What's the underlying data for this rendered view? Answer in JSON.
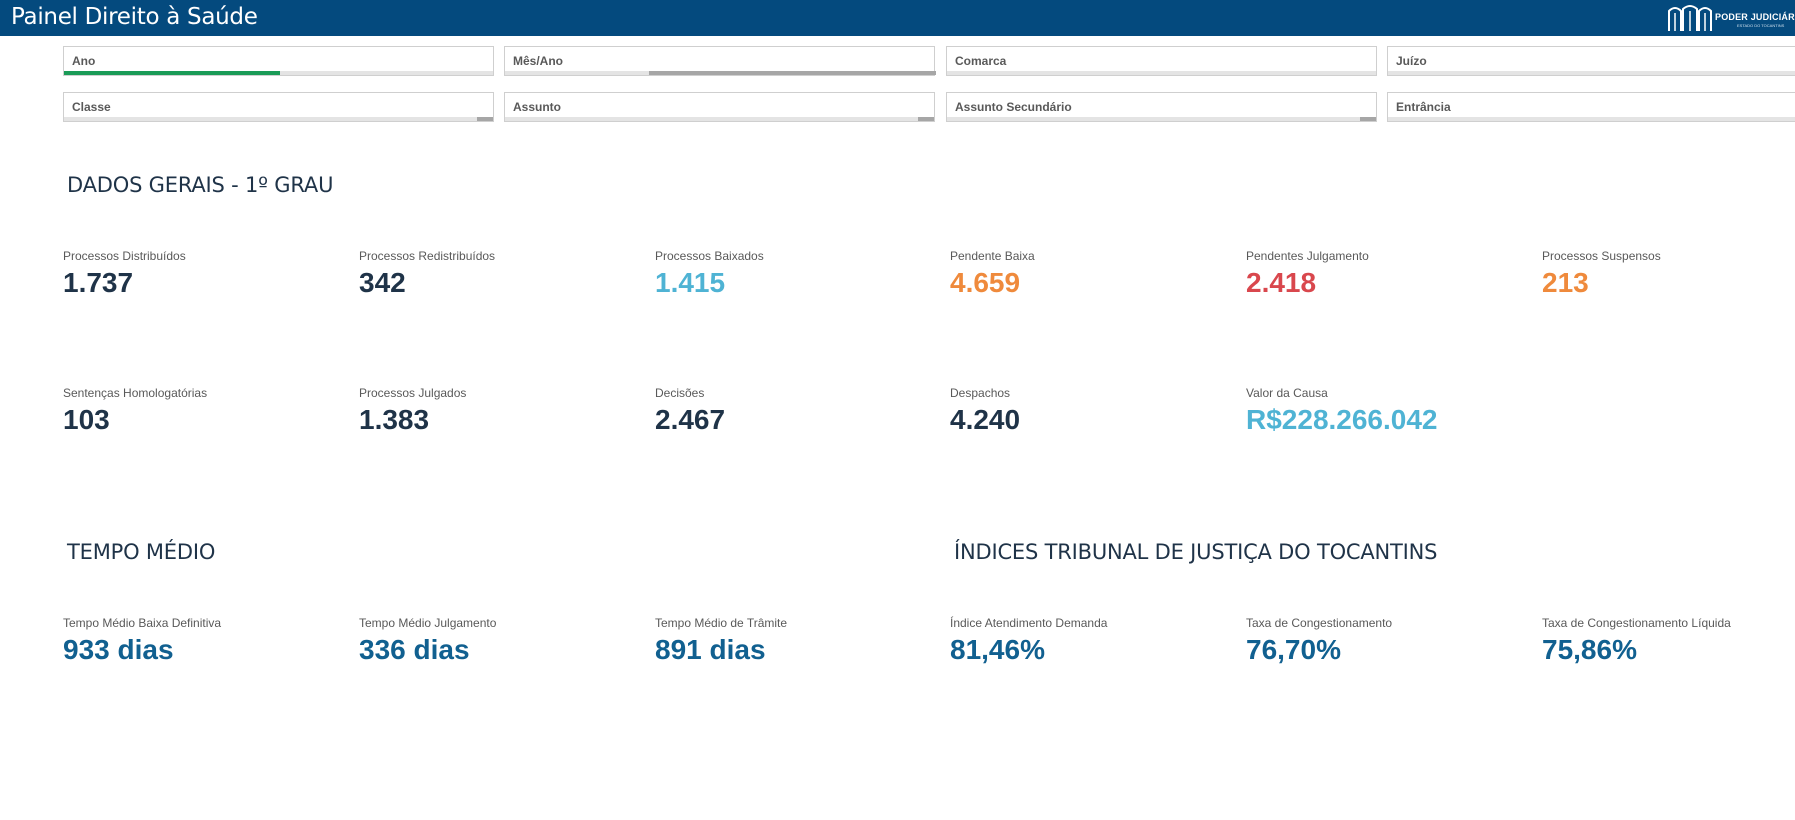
{
  "header": {
    "title": "Painel Direito à Saúde",
    "logo_text": "PODER JUDICIÁRIO",
    "logo_subtext": "ESTADO DO TOCANTINS"
  },
  "colors": {
    "header_bg": "#044a7e",
    "dark": "#1f3348",
    "light_blue": "#4fb3d4",
    "orange": "#ef8a3c",
    "red": "#d9474d",
    "mid_blue": "#116090",
    "slider_green": "#1a9b57",
    "slider_grey": "#a6a6a6"
  },
  "filters": [
    {
      "label": "Ano",
      "selection": "partial-green"
    },
    {
      "label": "Mês/Ano",
      "selection": "partial-grey"
    },
    {
      "label": "Comarca",
      "selection": "none"
    },
    {
      "label": "Juízo",
      "selection": "none"
    },
    {
      "label": "Classe",
      "selection": "scroll"
    },
    {
      "label": "Assunto",
      "selection": "scroll"
    },
    {
      "label": "Assunto Secundário",
      "selection": "scroll"
    },
    {
      "label": "Entrância",
      "selection": "none"
    }
  ],
  "general": {
    "title": "DADOS GERAIS - 1º GRAU",
    "row1": [
      {
        "label": "Processos Distribuídos",
        "value": "1.737",
        "tone": "dark"
      },
      {
        "label": "Processos Redistribuídos",
        "value": "342",
        "tone": "dark"
      },
      {
        "label": "Processos Baixados",
        "value": "1.415",
        "tone": "light_blue"
      },
      {
        "label": "Pendente Baixa",
        "value": "4.659",
        "tone": "orange"
      },
      {
        "label": "Pendentes Julgamento",
        "value": "2.418",
        "tone": "red"
      },
      {
        "label": "Processos Suspensos",
        "value": "213",
        "tone": "orange"
      }
    ],
    "row2": [
      {
        "label": "Sentenças Homologatórias",
        "value": "103",
        "tone": "dark"
      },
      {
        "label": "Processos Julgados",
        "value": "1.383",
        "tone": "dark"
      },
      {
        "label": "Decisões",
        "value": "2.467",
        "tone": "dark"
      },
      {
        "label": "Despachos",
        "value": "4.240",
        "tone": "dark"
      },
      {
        "label": "Valor da Causa",
        "value": "R$228.266.042",
        "tone": "light_blue"
      }
    ]
  },
  "time": {
    "title": "TEMPO MÉDIO",
    "items": [
      {
        "label": "Tempo Médio Baixa Definitiva",
        "value": "933 dias"
      },
      {
        "label": "Tempo Médio Julgamento",
        "value": "336 dias"
      },
      {
        "label": "Tempo Médio de Trâmite",
        "value": "891 dias"
      }
    ]
  },
  "indices": {
    "title": "ÍNDICES TRIBUNAL DE JUSTIÇA DO TOCANTINS",
    "items": [
      {
        "label": "Índice Atendimento Demanda",
        "value": "81,46%"
      },
      {
        "label": "Taxa de Congestionamento",
        "value": "76,70%"
      },
      {
        "label": "Taxa de Congestionamento Líquida",
        "value": "75,86%"
      }
    ]
  }
}
